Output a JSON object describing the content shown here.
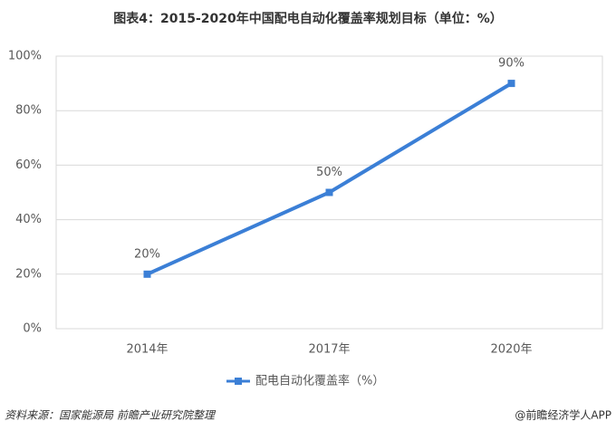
{
  "chart_data": {
    "type": "line",
    "title": "图表4：2015-2020年中国配电自动化覆盖率规划目标（单位：%）",
    "categories": [
      "2014年",
      "2017年",
      "2020年"
    ],
    "series": [
      {
        "name": "配电自动化覆盖率（%）",
        "color": "#3b7fd6",
        "values": [
          20,
          50,
          90
        ],
        "value_labels": [
          "20%",
          "50%",
          "90%"
        ]
      }
    ],
    "ylim": [
      0,
      100
    ],
    "yticks": [
      {
        "value": 0,
        "label": "0%"
      },
      {
        "value": 20,
        "label": "20%"
      },
      {
        "value": 40,
        "label": "40%"
      },
      {
        "value": 60,
        "label": "60%"
      },
      {
        "value": 80,
        "label": "80%"
      },
      {
        "value": 100,
        "label": "100%"
      }
    ],
    "grid": true,
    "legend": "bottom",
    "source": "资料来源：国家能源局  前瞻产业研究院整理",
    "credit": "@前瞻经济学人APP"
  }
}
